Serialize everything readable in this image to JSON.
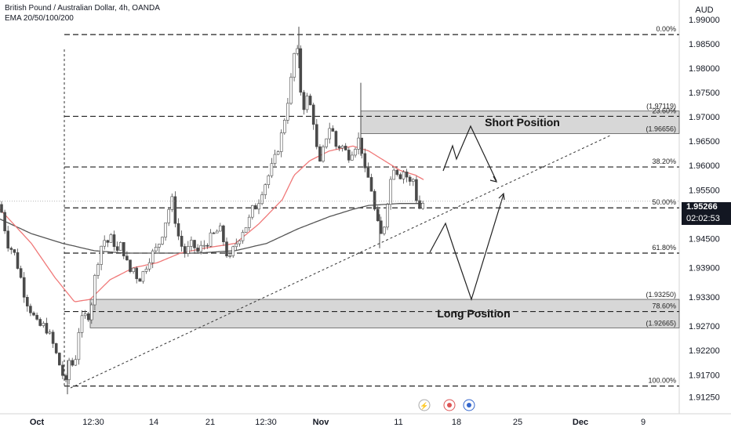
{
  "header": {
    "title": "British Pound / Australian Dollar, 4h, OANDA",
    "indicator": "EMA 20/50/100/200"
  },
  "currency": "AUD",
  "price": {
    "current": "1.95266",
    "countdown": "02:02:53"
  },
  "colors": {
    "up": "#26a69a",
    "down": "#ef5350",
    "candle": "#4a4a4a",
    "ema_fast": "#f07878",
    "ema_slow": "#555555",
    "zone": "#d0d0d0",
    "axis_text": "#131722"
  },
  "chart_data": {
    "type": "candlestick",
    "symbol": "GBPAUD",
    "timeframe": "4h",
    "ylim": [
      1.909,
      1.994
    ],
    "y_ticks": [
      "1.99000",
      "1.98500",
      "1.98000",
      "1.97500",
      "1.97000",
      "1.96500",
      "1.96000",
      "1.95500",
      "1.94500",
      "1.93900",
      "1.93300",
      "1.92700",
      "1.92200",
      "1.91700",
      "1.91250"
    ],
    "x_ticks": [
      "Oct",
      "12:30",
      "14",
      "21",
      "12:30",
      "Nov",
      "11",
      "18",
      "25",
      "Dec",
      "9"
    ],
    "fib_levels": [
      {
        "label": "0.00%",
        "price": 1.9869
      },
      {
        "label": "23.60%",
        "price": 1.9701
      },
      {
        "label": "38.20%",
        "price": 1.9597
      },
      {
        "label": "50.00%",
        "price": 1.9513
      },
      {
        "label": "61.80%",
        "price": 1.942
      },
      {
        "label": "78.60%",
        "price": 1.93
      },
      {
        "label": "100.00%",
        "price": 1.9147
      }
    ],
    "zones": [
      {
        "label": "Short Position",
        "top_label": "(1.97119)",
        "bottom_label": "(1.96656)",
        "top": 1.97119,
        "bottom": 1.96656
      },
      {
        "label": "Long Position",
        "top_label": "(1.93250)",
        "bottom_label": "(1.92665)",
        "top": 1.9325,
        "bottom": 1.92665
      }
    ],
    "close_path": [
      [
        0,
        1.952
      ],
      [
        5,
        1.948
      ],
      [
        10,
        1.944
      ],
      [
        18,
        1.942
      ],
      [
        25,
        1.938
      ],
      [
        32,
        1.933
      ],
      [
        40,
        1.93
      ],
      [
        48,
        1.927
      ],
      [
        58,
        1.927
      ],
      [
        66,
        1.924
      ],
      [
        74,
        1.92
      ],
      [
        80,
        1.917
      ],
      [
        84,
        1.915
      ],
      [
        88,
        1.92
      ],
      [
        92,
        1.919
      ],
      [
        97,
        1.921
      ],
      [
        100,
        1.926
      ],
      [
        104,
        1.928
      ],
      [
        108,
        1.929
      ],
      [
        112,
        1.929
      ],
      [
        116,
        1.931
      ],
      [
        120,
        1.936
      ],
      [
        124,
        1.94
      ],
      [
        128,
        1.943
      ],
      [
        132,
        1.945
      ],
      [
        136,
        1.944
      ],
      [
        141,
        1.945
      ],
      [
        146,
        1.944
      ],
      [
        150,
        1.942
      ],
      [
        155,
        1.944
      ],
      [
        160,
        1.941
      ],
      [
        165,
        1.938
      ],
      [
        170,
        1.939
      ],
      [
        175,
        1.937
      ],
      [
        180,
        1.937
      ],
      [
        185,
        1.939
      ],
      [
        190,
        1.941
      ],
      [
        195,
        1.942
      ],
      [
        200,
        1.943
      ],
      [
        205,
        1.945
      ],
      [
        210,
        1.948
      ],
      [
        215,
        1.951
      ],
      [
        220,
        1.953
      ],
      [
        225,
        1.947
      ],
      [
        230,
        1.944
      ],
      [
        236,
        1.942
      ],
      [
        241,
        1.943
      ],
      [
        246,
        1.944
      ],
      [
        251,
        1.942
      ],
      [
        256,
        1.943
      ],
      [
        262,
        1.944
      ],
      [
        268,
        1.945
      ],
      [
        274,
        1.946
      ],
      [
        280,
        1.947
      ],
      [
        286,
        1.944
      ],
      [
        292,
        1.94
      ],
      [
        298,
        1.943
      ],
      [
        304,
        1.945
      ],
      [
        310,
        1.947
      ],
      [
        316,
        1.948
      ],
      [
        322,
        1.951
      ],
      [
        328,
        1.952
      ],
      [
        334,
        1.955
      ],
      [
        340,
        1.957
      ],
      [
        345,
        1.959
      ],
      [
        350,
        1.961
      ],
      [
        355,
        1.964
      ],
      [
        360,
        1.967
      ],
      [
        365,
        1.972
      ],
      [
        370,
        1.976
      ],
      [
        374,
        1.982
      ],
      [
        378,
        1.985
      ],
      [
        381,
        1.98
      ],
      [
        384,
        1.974
      ],
      [
        388,
        1.972
      ],
      [
        392,
        1.974
      ],
      [
        396,
        1.972
      ],
      [
        400,
        1.969
      ],
      [
        404,
        1.963
      ],
      [
        408,
        1.96
      ],
      [
        412,
        1.963
      ],
      [
        416,
        1.966
      ],
      [
        420,
        1.968
      ],
      [
        424,
        1.967
      ],
      [
        428,
        1.964
      ],
      [
        432,
        1.964
      ],
      [
        436,
        1.964
      ],
      [
        440,
        1.963
      ],
      [
        444,
        1.962
      ],
      [
        448,
        1.963
      ],
      [
        452,
        1.964
      ],
      [
        456,
        1.965
      ],
      [
        460,
        1.966
      ],
      [
        463,
        1.959
      ],
      [
        467,
        1.958
      ],
      [
        471,
        1.957
      ],
      [
        475,
        1.954
      ],
      [
        479,
        1.949
      ],
      [
        483,
        1.947
      ],
      [
        487,
        1.945
      ],
      [
        490,
        1.948
      ],
      [
        494,
        1.953
      ],
      [
        498,
        1.957
      ],
      [
        502,
        1.96
      ],
      [
        506,
        1.959
      ],
      [
        510,
        1.958
      ],
      [
        514,
        1.959
      ],
      [
        518,
        1.958
      ],
      [
        522,
        1.956
      ],
      [
        526,
        1.958
      ],
      [
        530,
        1.954
      ],
      [
        534,
        1.951
      ],
      [
        538,
        1.952
      ],
      [
        541,
        1.9527
      ]
    ],
    "ema_fast_path": [
      [
        0,
        1.951
      ],
      [
        40,
        1.944
      ],
      [
        70,
        1.937
      ],
      [
        95,
        1.932
      ],
      [
        115,
        1.9325
      ],
      [
        140,
        1.9365
      ],
      [
        170,
        1.939
      ],
      [
        200,
        1.94
      ],
      [
        230,
        1.942
      ],
      [
        260,
        1.943
      ],
      [
        300,
        1.944
      ],
      [
        330,
        1.948
      ],
      [
        360,
        1.953
      ],
      [
        375,
        1.958
      ],
      [
        395,
        1.961
      ],
      [
        420,
        1.963
      ],
      [
        450,
        1.964
      ],
      [
        470,
        1.963
      ],
      [
        490,
        1.961
      ],
      [
        510,
        1.959
      ],
      [
        530,
        1.958
      ],
      [
        541,
        1.957
      ]
    ],
    "ema_slow_path": [
      [
        0,
        1.949
      ],
      [
        40,
        1.946
      ],
      [
        80,
        1.944
      ],
      [
        120,
        1.9425
      ],
      [
        160,
        1.942
      ],
      [
        200,
        1.942
      ],
      [
        250,
        1.942
      ],
      [
        300,
        1.9425
      ],
      [
        340,
        1.944
      ],
      [
        380,
        1.947
      ],
      [
        420,
        1.9495
      ],
      [
        450,
        1.951
      ],
      [
        470,
        1.9518
      ],
      [
        490,
        1.952
      ],
      [
        510,
        1.9522
      ],
      [
        541,
        1.9522
      ]
    ]
  }
}
